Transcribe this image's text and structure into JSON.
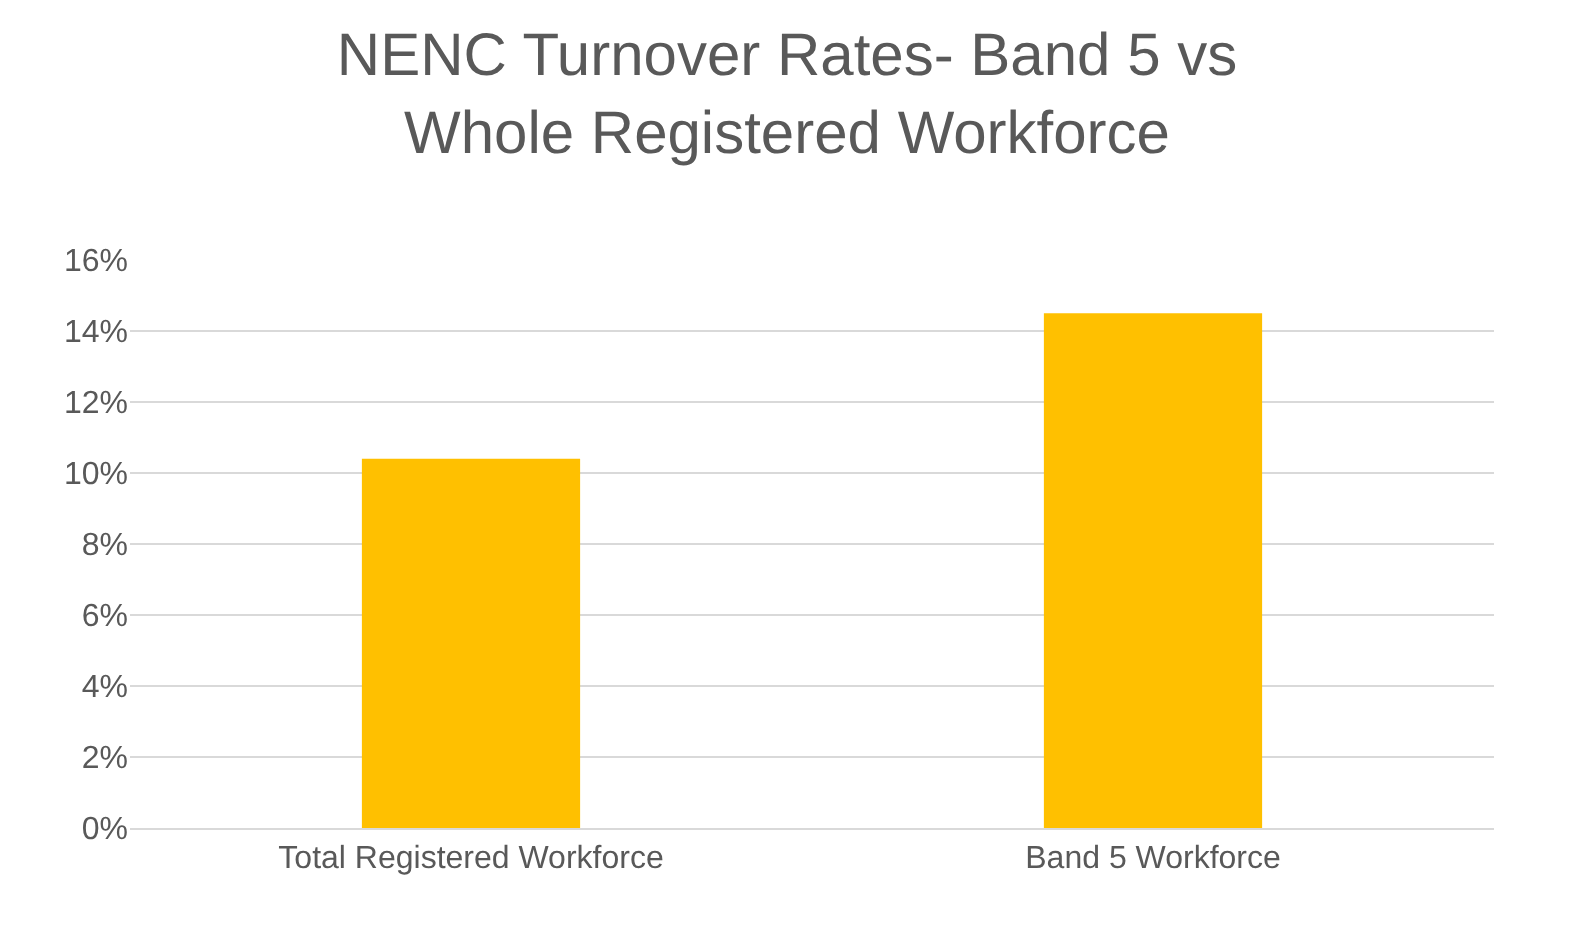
{
  "chart_data": {
    "type": "bar",
    "title": "NENC Turnover Rates- Band 5 vs Whole Registered Workforce",
    "categories": [
      "Total Registered Workforce",
      "Band 5 Workforce"
    ],
    "values": [
      10.4,
      14.5
    ],
    "color": "#ffc000",
    "ylim": [
      0,
      16
    ],
    "yticks": [
      {
        "value": 0,
        "label": "0%"
      },
      {
        "value": 2,
        "label": "2%"
      },
      {
        "value": 4,
        "label": "4%"
      },
      {
        "value": 6,
        "label": "6%"
      },
      {
        "value": 8,
        "label": "8%"
      },
      {
        "value": 10,
        "label": "10%"
      },
      {
        "value": 12,
        "label": "12%"
      },
      {
        "value": 14,
        "label": "14%"
      },
      {
        "value": 16,
        "label": "16%"
      }
    ],
    "grid": "y"
  }
}
